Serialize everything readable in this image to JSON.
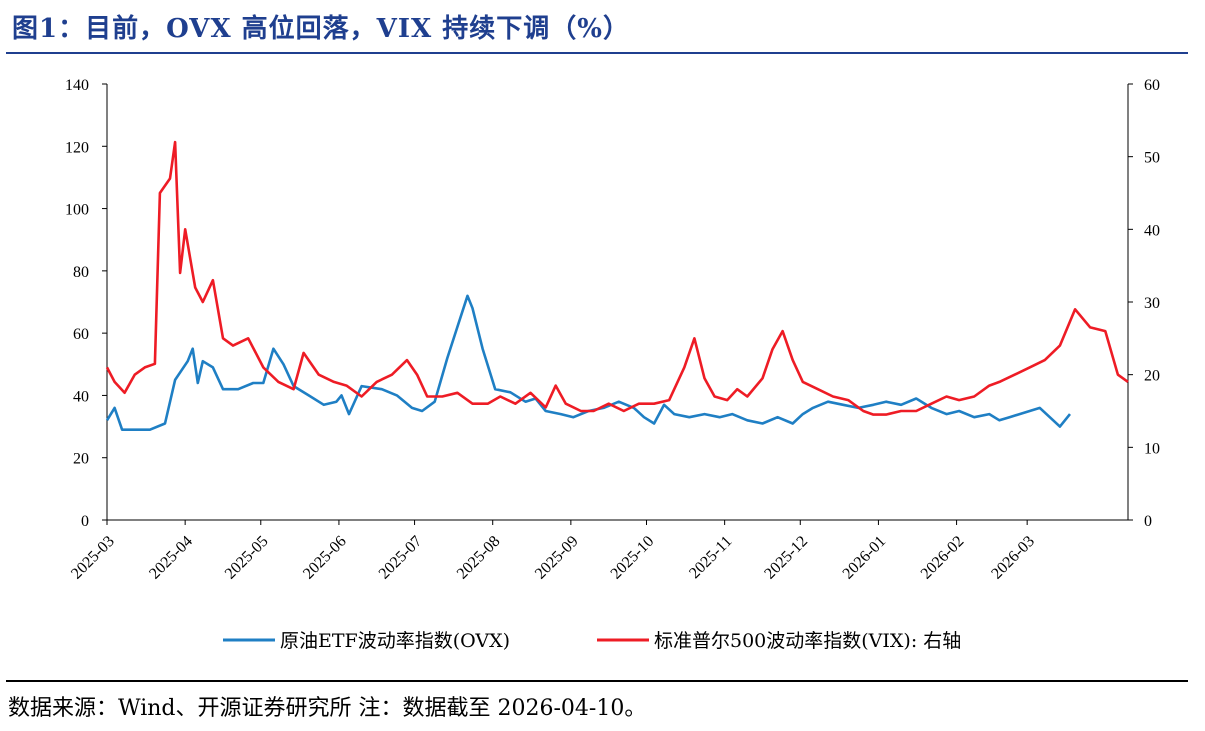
{
  "header": {
    "title": "图1：目前，OVX 高位回落，VIX 持续下调（%）"
  },
  "footer": {
    "source": "数据来源：Wind、开源证券研究所  注：数据截至 2026-04-10。"
  },
  "colors": {
    "ovx": "#1f7fc4",
    "vix": "#ee1c25",
    "title": "#1f3f8f"
  },
  "chart_data": {
    "type": "line",
    "title": "",
    "xlabel": "",
    "ylabel": "",
    "y_left": {
      "range": [
        0,
        140
      ],
      "ticks": [
        0,
        20,
        40,
        60,
        80,
        100,
        120,
        140
      ]
    },
    "y_right": {
      "range": [
        0,
        60
      ],
      "ticks": [
        0,
        10,
        20,
        30,
        40,
        50,
        60
      ]
    },
    "x_ticks": [
      "2025-03",
      "2025-04",
      "2025-05",
      "2025-06",
      "2025-07",
      "2025-08",
      "2025-09",
      "2025-10",
      "2025-11",
      "2025-12",
      "2026-01",
      "2026-02",
      "2026-03"
    ],
    "x_range": [
      "2025-03-01",
      "2026-04-10"
    ],
    "grid": false,
    "legend_position": "bottom",
    "series": [
      {
        "name": "原油ETF波动率指数(OVX)",
        "axis": "left",
        "points": [
          [
            "2025-03-01",
            32
          ],
          [
            "2025-03-04",
            36
          ],
          [
            "2025-03-07",
            29
          ],
          [
            "2025-03-12",
            29
          ],
          [
            "2025-03-18",
            29
          ],
          [
            "2025-03-24",
            31
          ],
          [
            "2025-03-28",
            45
          ],
          [
            "2025-04-02",
            51
          ],
          [
            "2025-04-04",
            55
          ],
          [
            "2025-04-06",
            44
          ],
          [
            "2025-04-08",
            51
          ],
          [
            "2025-04-12",
            49
          ],
          [
            "2025-04-16",
            42
          ],
          [
            "2025-04-22",
            42
          ],
          [
            "2025-04-28",
            44
          ],
          [
            "2025-05-02",
            44
          ],
          [
            "2025-05-06",
            55
          ],
          [
            "2025-05-10",
            50
          ],
          [
            "2025-05-14",
            43
          ],
          [
            "2025-05-20",
            40
          ],
          [
            "2025-05-26",
            37
          ],
          [
            "2025-05-31",
            38
          ],
          [
            "2025-06-02",
            40
          ],
          [
            "2025-06-05",
            34
          ],
          [
            "2025-06-10",
            43
          ],
          [
            "2025-06-18",
            42
          ],
          [
            "2025-06-24",
            40
          ],
          [
            "2025-06-30",
            36
          ],
          [
            "2025-07-04",
            35
          ],
          [
            "2025-07-09",
            38
          ],
          [
            "2025-07-14",
            52
          ],
          [
            "2025-07-18",
            62
          ],
          [
            "2025-07-22",
            72
          ],
          [
            "2025-07-24",
            68
          ],
          [
            "2025-07-28",
            55
          ],
          [
            "2025-08-02",
            42
          ],
          [
            "2025-08-08",
            41
          ],
          [
            "2025-08-14",
            38
          ],
          [
            "2025-08-18",
            39
          ],
          [
            "2025-08-22",
            35
          ],
          [
            "2025-08-28",
            34
          ],
          [
            "2025-09-02",
            33
          ],
          [
            "2025-09-08",
            35
          ],
          [
            "2025-09-14",
            36
          ],
          [
            "2025-09-20",
            38
          ],
          [
            "2025-09-26",
            36
          ],
          [
            "2025-09-30",
            33
          ],
          [
            "2025-10-04",
            31
          ],
          [
            "2025-10-08",
            37
          ],
          [
            "2025-10-12",
            34
          ],
          [
            "2025-10-18",
            33
          ],
          [
            "2025-10-24",
            34
          ],
          [
            "2025-10-30",
            33
          ],
          [
            "2025-11-04",
            34
          ],
          [
            "2025-11-10",
            32
          ],
          [
            "2025-11-16",
            31
          ],
          [
            "2025-11-22",
            33
          ],
          [
            "2025-11-28",
            31
          ],
          [
            "2025-12-02",
            34
          ],
          [
            "2025-12-06",
            36
          ],
          [
            "2025-12-12",
            38
          ],
          [
            "2025-12-18",
            37
          ],
          [
            "2025-12-24",
            36
          ],
          [
            "2025-12-30",
            37
          ],
          [
            "2026-01-04",
            38
          ],
          [
            "2026-01-10",
            37
          ],
          [
            "2026-01-16",
            39
          ],
          [
            "2026-01-22",
            36
          ],
          [
            "2026-01-28",
            34
          ],
          [
            "2026-02-02",
            35
          ],
          [
            "2026-02-08",
            33
          ],
          [
            "2026-02-14",
            34
          ],
          [
            "2026-02-18",
            32
          ],
          [
            "2026-02-22",
            33
          ],
          [
            "2026-02-26",
            34
          ],
          [
            "2026-03-02",
            35
          ],
          [
            "2026-03-06",
            36
          ],
          [
            "2026-03-10",
            33
          ],
          [
            "2026-03-14",
            30
          ],
          [
            "2026-03-18",
            34
          ]
        ]
      },
      {
        "name": "标准普尔500波动率指数(VIX): 右轴",
        "axis": "right",
        "points": [
          [
            "2025-03-01",
            21
          ],
          [
            "2025-03-04",
            19
          ],
          [
            "2025-03-08",
            17.5
          ],
          [
            "2025-03-12",
            20
          ],
          [
            "2025-03-16",
            21
          ],
          [
            "2025-03-20",
            21.5
          ],
          [
            "2025-03-22",
            45
          ],
          [
            "2025-03-26",
            47
          ],
          [
            "2025-03-28",
            52
          ],
          [
            "2025-03-30",
            34
          ],
          [
            "2025-04-01",
            40
          ],
          [
            "2025-04-05",
            32
          ],
          [
            "2025-04-08",
            30
          ],
          [
            "2025-04-12",
            33
          ],
          [
            "2025-04-16",
            25
          ],
          [
            "2025-04-20",
            24
          ],
          [
            "2025-04-26",
            25
          ],
          [
            "2025-05-02",
            21
          ],
          [
            "2025-05-08",
            19
          ],
          [
            "2025-05-14",
            18
          ],
          [
            "2025-05-18",
            23
          ],
          [
            "2025-05-24",
            20
          ],
          [
            "2025-05-30",
            19
          ],
          [
            "2025-06-04",
            18.5
          ],
          [
            "2025-06-10",
            17
          ],
          [
            "2025-06-16",
            19
          ],
          [
            "2025-06-22",
            20
          ],
          [
            "2025-06-28",
            22
          ],
          [
            "2025-07-02",
            20
          ],
          [
            "2025-07-06",
            17
          ],
          [
            "2025-07-12",
            17
          ],
          [
            "2025-07-18",
            17.5
          ],
          [
            "2025-07-24",
            16
          ],
          [
            "2025-07-30",
            16
          ],
          [
            "2025-08-04",
            17
          ],
          [
            "2025-08-10",
            16
          ],
          [
            "2025-08-16",
            17.5
          ],
          [
            "2025-08-22",
            15.5
          ],
          [
            "2025-08-26",
            18.5
          ],
          [
            "2025-08-30",
            16
          ],
          [
            "2025-09-05",
            15
          ],
          [
            "2025-09-10",
            15
          ],
          [
            "2025-09-16",
            16
          ],
          [
            "2025-09-22",
            15
          ],
          [
            "2025-09-28",
            16
          ],
          [
            "2025-10-04",
            16
          ],
          [
            "2025-10-10",
            16.5
          ],
          [
            "2025-10-16",
            21
          ],
          [
            "2025-10-20",
            25
          ],
          [
            "2025-10-24",
            19.5
          ],
          [
            "2025-10-28",
            17
          ],
          [
            "2025-11-02",
            16.5
          ],
          [
            "2025-11-06",
            18
          ],
          [
            "2025-11-10",
            17
          ],
          [
            "2025-11-16",
            19.5
          ],
          [
            "2025-11-20",
            23.5
          ],
          [
            "2025-11-24",
            26
          ],
          [
            "2025-11-28",
            22
          ],
          [
            "2025-12-02",
            19
          ],
          [
            "2025-12-08",
            18
          ],
          [
            "2025-12-14",
            17
          ],
          [
            "2025-12-20",
            16.5
          ],
          [
            "2025-12-26",
            15
          ],
          [
            "2025-12-30",
            14.5
          ],
          [
            "2026-01-04",
            14.5
          ],
          [
            "2026-01-10",
            15
          ],
          [
            "2026-01-16",
            15
          ],
          [
            "2026-01-22",
            16
          ],
          [
            "2026-01-28",
            17
          ],
          [
            "2026-02-02",
            16.5
          ],
          [
            "2026-02-08",
            17
          ],
          [
            "2026-02-14",
            18.5
          ],
          [
            "2026-02-18",
            19
          ],
          [
            "2026-02-24",
            20
          ],
          [
            "2026-03-02",
            21
          ],
          [
            "2026-03-08",
            22
          ],
          [
            "2026-03-14",
            24
          ],
          [
            "2026-03-20",
            29
          ],
          [
            "2026-03-26",
            26.5
          ],
          [
            "2026-04-01",
            26
          ],
          [
            "2026-04-06",
            20
          ],
          [
            "2026-04-10",
            19
          ]
        ]
      }
    ]
  }
}
